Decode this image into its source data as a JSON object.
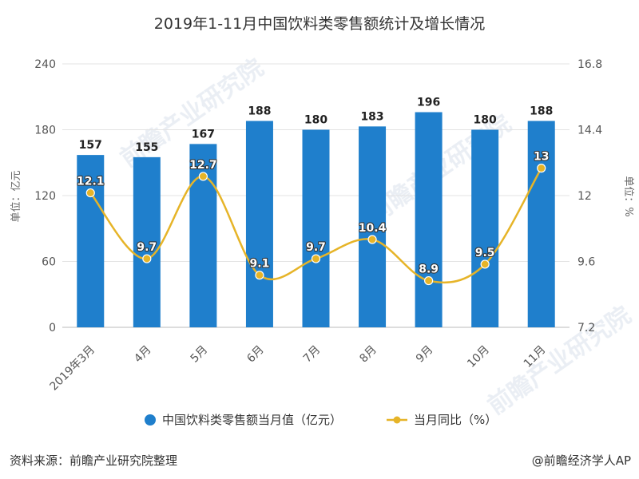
{
  "footer": {
    "source": "资料来源：前瞻产业研究院整理",
    "credit": "@前瞻经济学人AP"
  },
  "colors": {
    "bar": "#1f7fcc",
    "line": "#e6b428",
    "line_point_fill": "#e6b428"
  },
  "chart_data": {
    "type": "bar",
    "title": "2019年1-11月中国饮料类零售额统计及增长情况",
    "categories": [
      "2019年3月",
      "4月",
      "5月",
      "6月",
      "7月",
      "8月",
      "9月",
      "10月",
      "11月"
    ],
    "series": [
      {
        "name": "中国饮料类零售额当月值（亿元）",
        "type": "bar",
        "axis": "left",
        "values": [
          157,
          155,
          167,
          188,
          180,
          183,
          196,
          180,
          188
        ]
      },
      {
        "name": "当月同比（%）",
        "type": "line",
        "axis": "right",
        "values": [
          12.1,
          9.7,
          12.7,
          9.1,
          9.7,
          10.4,
          8.9,
          9.5,
          13
        ]
      }
    ],
    "ylabel_left": "单位：亿元",
    "ylabel_right": "单位：%",
    "ylim_left": [
      0,
      240
    ],
    "yticks_left": [
      "0",
      "60",
      "120",
      "180",
      "240"
    ],
    "ylim_right": [
      7.2,
      16.8
    ],
    "yticks_right": [
      "7.2",
      "9.6",
      "12",
      "14.4",
      "16.8"
    ],
    "grid": true,
    "legend_position": "bottom"
  }
}
